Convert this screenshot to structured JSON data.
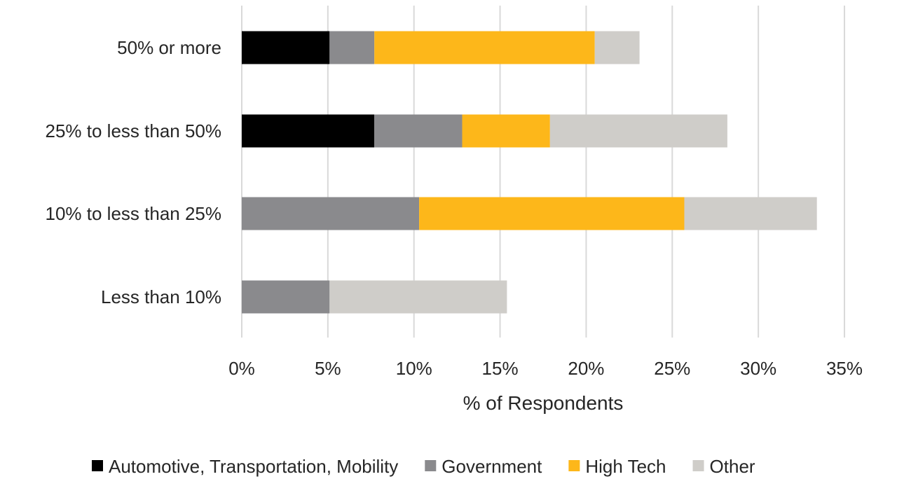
{
  "chart_data": {
    "type": "bar",
    "orientation": "horizontal",
    "stacked": true,
    "title": "",
    "xlabel": "% of Respondents",
    "ylabel": "",
    "xlim": [
      0,
      35
    ],
    "x_ticks": [
      0,
      5,
      10,
      15,
      20,
      25,
      30,
      35
    ],
    "x_tick_labels": [
      "0%",
      "5%",
      "10%",
      "15%",
      "20%",
      "25%",
      "30%",
      "35%"
    ],
    "grid": true,
    "legend_position": "bottom",
    "categories": [
      "50% or more",
      "25% to less than 50%",
      "10% to less than 25%",
      "Less than 10%"
    ],
    "series": [
      {
        "name": "Automotive, Transportation, Mobility",
        "color": "#000000",
        "values": [
          5.1,
          7.7,
          0,
          0
        ]
      },
      {
        "name": "Government",
        "color": "#8a8a8d",
        "values": [
          2.6,
          5.1,
          10.3,
          5.1
        ]
      },
      {
        "name": "High Tech",
        "color": "#fdb71a",
        "values": [
          12.8,
          5.1,
          15.4,
          0
        ]
      },
      {
        "name": "Other",
        "color": "#cfcdc9",
        "values": [
          2.6,
          10.3,
          7.7,
          10.3
        ]
      }
    ]
  }
}
